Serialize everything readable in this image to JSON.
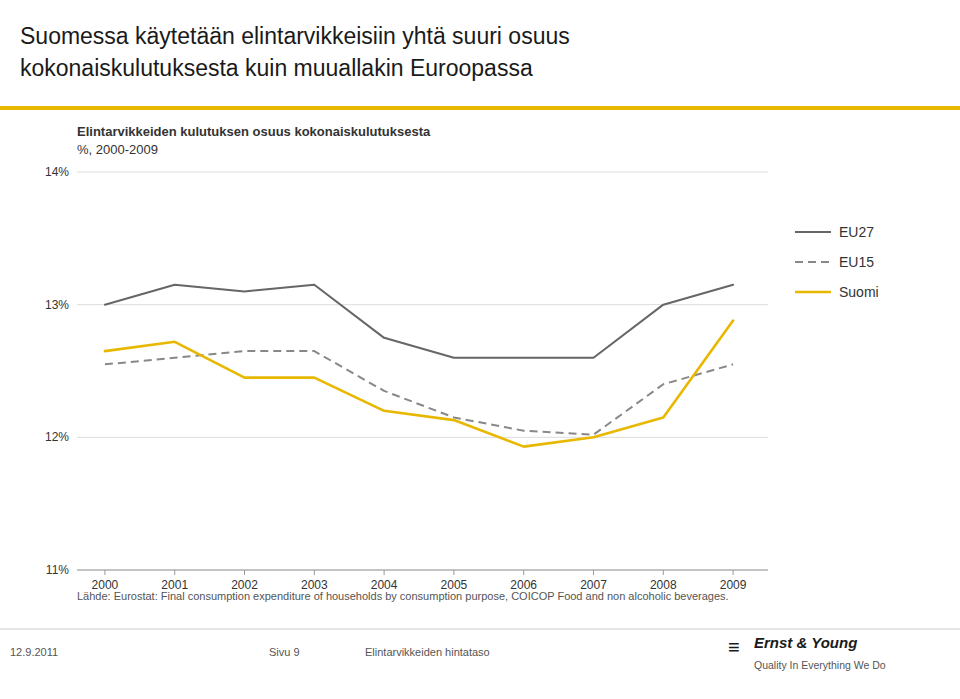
{
  "chart_data": {
    "type": "line",
    "title": [
      "Suomessa käytetään elintarvikkeisiin yhtä suuri osuus",
      "kokonaiskulutuksesta kuin muuallakin Euroopassa"
    ],
    "subtitle": [
      "Elintarvikkeiden kulutuksen osuus kokonaiskulutuksesta",
      "%, 2000-2009"
    ],
    "x": [
      2000,
      2001,
      2002,
      2003,
      2004,
      2005,
      2006,
      2007,
      2008,
      2009
    ],
    "series": [
      {
        "name": "EU27",
        "color": "#666666",
        "line_style": "solid",
        "values": [
          13.0,
          13.15,
          13.1,
          13.15,
          12.75,
          12.6,
          12.6,
          12.6,
          13.0,
          13.15
        ]
      },
      {
        "name": "EU15",
        "color": "#888888",
        "line_style": "dashed",
        "values": [
          12.55,
          12.6,
          12.65,
          12.65,
          12.35,
          12.15,
          12.05,
          12.02,
          12.4,
          12.55
        ]
      },
      {
        "name": "Suomi",
        "color": "#E8B800",
        "line_style": "solid",
        "values": [
          12.65,
          12.72,
          12.45,
          12.45,
          12.2,
          12.13,
          11.93,
          12.0,
          12.15,
          12.88
        ]
      }
    ],
    "xlim": [
      1999.6,
      2009.5
    ],
    "xticks": [
      2000,
      2001,
      2002,
      2003,
      2004,
      2005,
      2006,
      2007,
      2008,
      2009
    ],
    "ylim": [
      11.0,
      14.0
    ],
    "yticks": [
      {
        "value": 11.0,
        "label": "11%"
      },
      {
        "value": 12.0,
        "label": "12%"
      },
      {
        "value": 13.0,
        "label": "13%"
      },
      {
        "value": 14.0,
        "label": "14%"
      }
    ],
    "grid": true,
    "legend": "right",
    "color": "#E8B800",
    "annotations": [
      "Lähde: Eurostat: Final consumption expenditure of households by consumption purpose, COICOP Food and non alcoholic beverages.",
      "12.9.2011",
      "Sivu 9",
      "Elintarvikkeiden hintataso",
      "≡",
      "Ernst & Young",
      "Quality In Everything We Do"
    ]
  }
}
